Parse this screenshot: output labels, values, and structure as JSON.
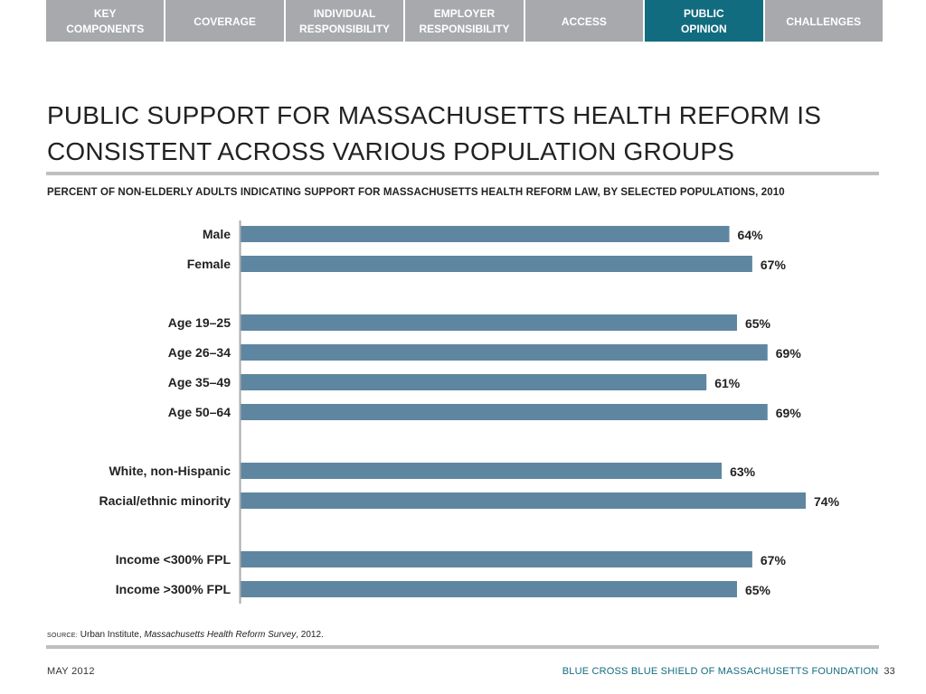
{
  "nav": {
    "tabs": [
      {
        "label": "KEY\nCOMPONENTS",
        "active": false
      },
      {
        "label": "COVERAGE",
        "active": false
      },
      {
        "label": "INDIVIDUAL\nRESPONSIBILITY",
        "active": false
      },
      {
        "label": "EMPLOYER\nRESPONSIBILITY",
        "active": false
      },
      {
        "label": "ACCESS",
        "active": false
      },
      {
        "label": "PUBLIC\nOPINION",
        "active": true
      },
      {
        "label": "CHALLENGES",
        "active": false
      }
    ]
  },
  "slide": {
    "title": "PUBLIC SUPPORT FOR MASSACHUSETTS HEALTH REFORM IS CONSISTENT ACROSS VARIOUS POPULATION GROUPS",
    "subtitle": "PERCENT OF NON-ELDERLY ADULTS INDICATING SUPPORT FOR MASSACHUSETTS HEALTH REFORM LAW, BY SELECTED POPULATIONS, 2010"
  },
  "source": {
    "label": "SOURCE:",
    "org": "Urban Institute, ",
    "title": "Massachusetts Health Reform Survey",
    "year": ", 2012."
  },
  "footer": {
    "date": "MAY 2012",
    "org": "BLUE CROSS BLUE SHIELD OF MASSACHUSETTS FOUNDATION",
    "page": "33"
  },
  "colors": {
    "bar": "#5e86a1",
    "active_tab": "#126c80",
    "tab": "#a7a9ac",
    "axis": "#a7a9ac"
  },
  "chart_data": {
    "type": "bar",
    "orientation": "horizontal",
    "title": "PERCENT OF NON-ELDERLY ADULTS INDICATING SUPPORT FOR MASSACHUSETTS HEALTH REFORM LAW, BY SELECTED POPULATIONS, 2010",
    "groups": [
      {
        "categories": [
          "Male",
          "Female"
        ],
        "values": [
          64,
          67
        ]
      },
      {
        "categories": [
          "Age 19–25",
          "Age 26–34",
          "Age 35–49",
          "Age 50–64"
        ],
        "values": [
          65,
          69,
          61,
          69
        ]
      },
      {
        "categories": [
          "White, non-Hispanic",
          "Racial/ethnic minority"
        ],
        "values": [
          63,
          74
        ]
      },
      {
        "categories": [
          "Income <300% FPL",
          "Income >300% FPL"
        ],
        "values": [
          67,
          65
        ]
      }
    ],
    "value_suffix": "%",
    "xlim": [
      0,
      78
    ],
    "grid": false,
    "legend": "none"
  }
}
